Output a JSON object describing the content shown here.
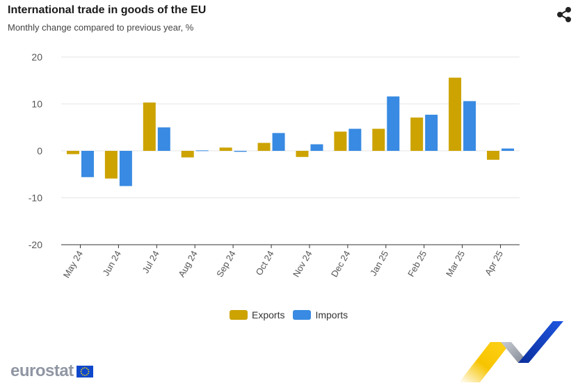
{
  "header": {
    "title": "International trade in goods of the EU",
    "subtitle": "Monthly change compared to previous year, %"
  },
  "icons": {
    "share": "share-icon",
    "flag": "eu-flag-icon"
  },
  "brand": {
    "name": "eurostat"
  },
  "colors": {
    "exports": "#cca300",
    "imports": "#388ae2",
    "grid": "#e6e6e6",
    "axis": "#555555",
    "text": "#555555"
  },
  "legend": {
    "items": [
      "Exports",
      "Imports"
    ]
  },
  "chart_data": {
    "type": "bar",
    "categories": [
      "May 24",
      "Jun 24",
      "Jul 24",
      "Aug 24",
      "Sep 24",
      "Oct 24",
      "Nov 24",
      "Dec 24",
      "Jan 25",
      "Feb 25",
      "Mar 25",
      "Apr 25"
    ],
    "series": [
      {
        "name": "Exports",
        "values": [
          -0.7,
          -5.9,
          10.3,
          -1.4,
          0.7,
          1.7,
          -1.3,
          4.1,
          4.7,
          7.1,
          15.6,
          -1.9
        ]
      },
      {
        "name": "Imports",
        "values": [
          -5.6,
          -7.5,
          5.0,
          0.1,
          -0.2,
          3.8,
          1.4,
          4.7,
          11.6,
          7.7,
          10.6,
          0.5
        ]
      }
    ],
    "yticks": [
      "20",
      "10",
      "0",
      "-10",
      "-20"
    ],
    "ylim": [
      -20,
      20
    ],
    "grid": true,
    "legend_position": "bottom-center"
  }
}
